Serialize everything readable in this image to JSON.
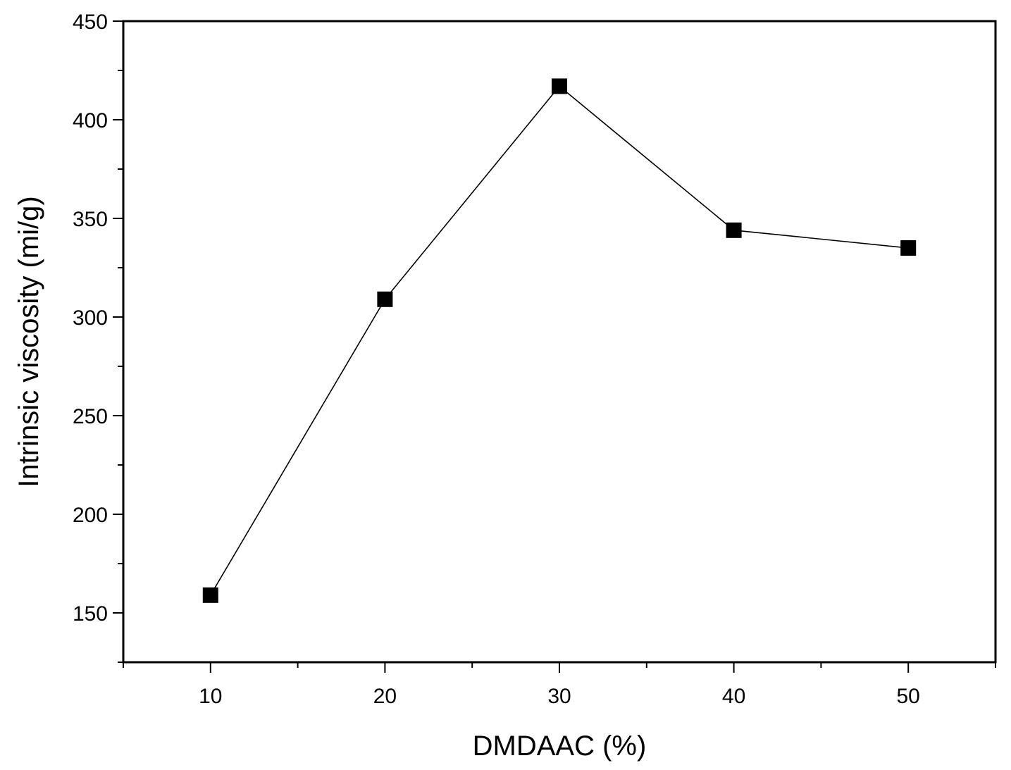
{
  "chart_data": {
    "type": "line",
    "title": "",
    "xlabel": "DMDAAC (%)",
    "ylabel": "Intrinsic viscosity (mi/g)",
    "xlim": [
      5,
      55
    ],
    "ylim": [
      125,
      450
    ],
    "x_ticks": [
      10,
      20,
      30,
      40,
      50
    ],
    "x_tick_labels": [
      "10",
      "20",
      "30",
      "40",
      "50"
    ],
    "y_ticks": [
      150,
      200,
      250,
      300,
      350,
      400,
      450
    ],
    "y_tick_labels": [
      "150",
      "200",
      "250",
      "300",
      "350",
      "400",
      "450"
    ],
    "grid": false,
    "legend": "none",
    "marker": "square",
    "series": [
      {
        "x": [
          10,
          20,
          30,
          40,
          50
        ],
        "values": [
          159,
          309,
          417,
          344,
          335
        ],
        "color": "#000000"
      }
    ]
  }
}
